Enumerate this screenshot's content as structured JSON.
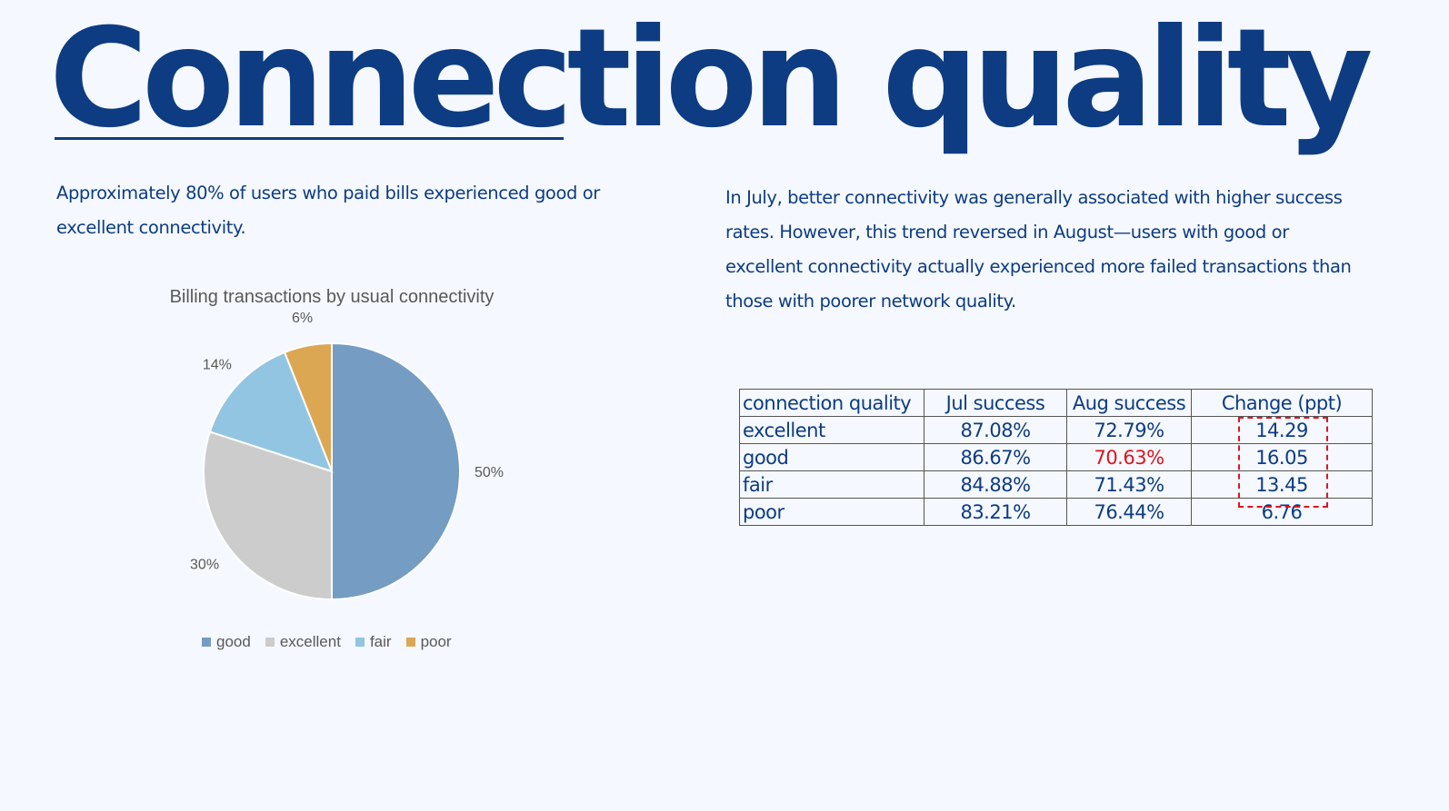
{
  "slide": {
    "title": "Connection quality",
    "left_text": "Approximately 80% of users who paid bills experienced good or excellent connectivity.",
    "right_text": "In July, better connectivity was generally associated with higher success rates. However, this trend reversed in August—users with good or excellent connectivity actually experienced more failed transactions than those with poorer network quality."
  },
  "chart_data": {
    "type": "pie",
    "title": "Billing transactions by usual connectivity",
    "categories": [
      "good",
      "excellent",
      "fair",
      "poor"
    ],
    "values": [
      50,
      30,
      14,
      6
    ],
    "labels": [
      "50%",
      "30%",
      "14%",
      "6%"
    ],
    "colors": [
      "#759cc3",
      "#cccccc",
      "#92c5e2",
      "#dca752"
    ],
    "legend_position": "bottom",
    "start": "top, clockwise"
  },
  "table": {
    "headers": [
      "connection quality",
      "Jul success",
      "Aug success",
      "Change (ppt)"
    ],
    "rows": [
      {
        "quality": "excellent",
        "jul": "87.08%",
        "aug": "72.79%",
        "change": "14.29",
        "aug_highlight": false
      },
      {
        "quality": "good",
        "jul": "86.67%",
        "aug": "70.63%",
        "change": "16.05",
        "aug_highlight": true
      },
      {
        "quality": "fair",
        "jul": "84.88%",
        "aug": "71.43%",
        "change": "13.45",
        "aug_highlight": false
      },
      {
        "quality": "poor",
        "jul": "83.21%",
        "aug": "76.44%",
        "change": "6.76",
        "aug_highlight": false
      }
    ],
    "highlight_color": "#e0141e",
    "highlighted_change_rows": [
      "excellent",
      "good",
      "fair"
    ]
  }
}
